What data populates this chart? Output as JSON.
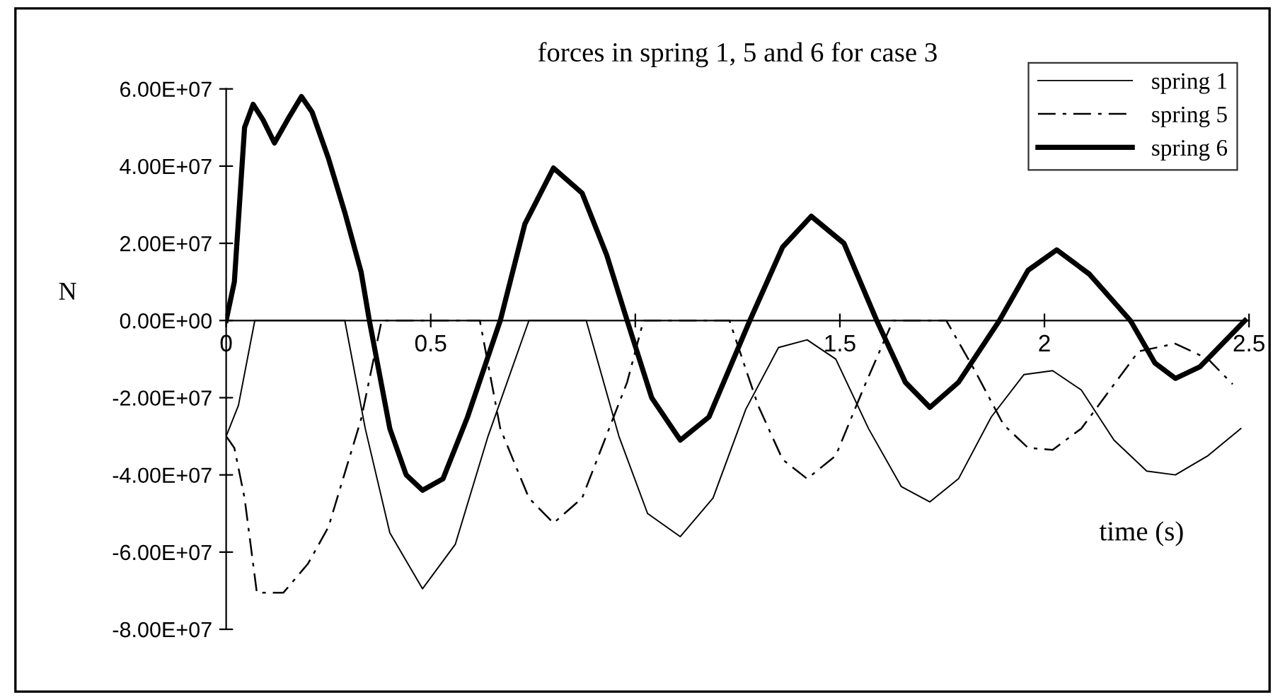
{
  "chart_data": {
    "type": "line",
    "title": "forces in spring 1, 5 and 6 for case 3",
    "xlabel": "time (s)",
    "ylabel": "N",
    "xlim": [
      0,
      2.5
    ],
    "xticks": [
      0,
      0.5,
      {
        "value": 1,
        "label": null
      },
      1.5,
      2,
      2.5
    ],
    "ylim": [
      -80000000,
      60000000
    ],
    "yticks": [
      {
        "value": -80000000,
        "label": "-8.00E+07"
      },
      {
        "value": -60000000,
        "label": "-6.00E+07"
      },
      {
        "value": -40000000,
        "label": "-4.00E+07"
      },
      {
        "value": -20000000,
        "label": "-2.00E+07"
      },
      {
        "value": 0,
        "label": "0.00E+00"
      },
      {
        "value": 20000000,
        "label": "2.00E+07"
      },
      {
        "value": 40000000,
        "label": "4.00E+07"
      },
      {
        "value": 60000000,
        "label": "6.00E+07"
      }
    ],
    "grid": false,
    "legend": "top right",
    "series": [
      {
        "name": "spring 1",
        "color": "#000000",
        "line_style": "solid",
        "x": [
          0,
          0.03,
          0.07,
          0.29,
          0.34,
          0.4,
          0.48,
          0.56,
          0.64,
          0.74,
          0.88,
          0.96,
          1.03,
          1.11,
          1.19,
          1.27,
          1.35,
          1.42,
          1.49,
          1.57,
          1.65,
          1.72,
          1.79,
          1.87,
          1.95,
          2.02,
          2.09,
          2.17,
          2.25,
          2.32,
          2.4,
          2.48
        ],
        "values": [
          -30000000,
          -22000000,
          0,
          0,
          -28000000,
          -55000000,
          -69500000,
          -58000000,
          -30000000,
          0,
          0,
          -30000000,
          -50000000,
          -56000000,
          -46000000,
          -23000000,
          -7000000,
          -5000000,
          -10000000,
          -28000000,
          -43000000,
          -47000000,
          -41000000,
          -25000000,
          -14000000,
          -13000000,
          -18000000,
          -31000000,
          -39000000,
          -40000000,
          -35000000,
          -28000000
        ]
      },
      {
        "name": "spring 5",
        "color": "#000000",
        "line_style": "dashdot",
        "x": [
          0,
          0.02,
          0.045,
          0.075,
          0.14,
          0.2,
          0.25,
          0.33,
          0.38,
          0.62,
          0.67,
          0.74,
          0.8,
          0.87,
          0.98,
          1.02,
          1.23,
          1.3,
          1.36,
          1.42,
          1.49,
          1.56,
          1.63,
          1.76,
          1.83,
          1.9,
          1.96,
          2.02,
          2.09,
          2.16,
          2.23,
          2.32,
          2.4,
          2.46
        ],
        "values": [
          -30000000,
          -33000000,
          -46000000,
          -70500000,
          -70500000,
          -63000000,
          -53500000,
          -25500000,
          0,
          0,
          -28000000,
          -46000000,
          -52500000,
          -46000000,
          -16000000,
          0,
          0,
          -22000000,
          -36000000,
          -41000000,
          -35000000,
          -17000000,
          0,
          0,
          -13000000,
          -27000000,
          -33000000,
          -33500000,
          -28000000,
          -18000000,
          -8000000,
          -6000000,
          -10000000,
          -16500000
        ]
      },
      {
        "name": "spring 6",
        "color": "#000000",
        "line_style": "solid",
        "x": [
          0,
          0.02,
          0.045,
          0.066,
          0.09,
          0.118,
          0.15,
          0.184,
          0.21,
          0.25,
          0.29,
          0.33,
          0.35,
          0.4,
          0.44,
          0.48,
          0.53,
          0.59,
          0.67,
          0.73,
          0.8,
          0.87,
          0.93,
          0.98,
          1.04,
          1.11,
          1.18,
          1.28,
          1.36,
          1.43,
          1.51,
          1.59,
          1.66,
          1.72,
          1.79,
          1.89,
          1.96,
          2.03,
          2.11,
          2.21,
          2.27,
          2.32,
          2.38,
          2.49
        ],
        "values": [
          0,
          10000000,
          50000000,
          56000000,
          52000000,
          46000000,
          52000000,
          58000000,
          54000000,
          42000000,
          28000000,
          12500000,
          0,
          -28000000,
          -40000000,
          -44000000,
          -41000000,
          -25000000,
          0,
          25000000,
          39500000,
          33000000,
          17000000,
          0,
          -20000000,
          -31000000,
          -25000000,
          0,
          19000000,
          27000000,
          20000000,
          0,
          -16000000,
          -22500000,
          -16000000,
          0,
          13000000,
          18300000,
          12000000,
          0,
          -11000000,
          -15000000,
          -12000000,
          0
        ]
      }
    ]
  }
}
